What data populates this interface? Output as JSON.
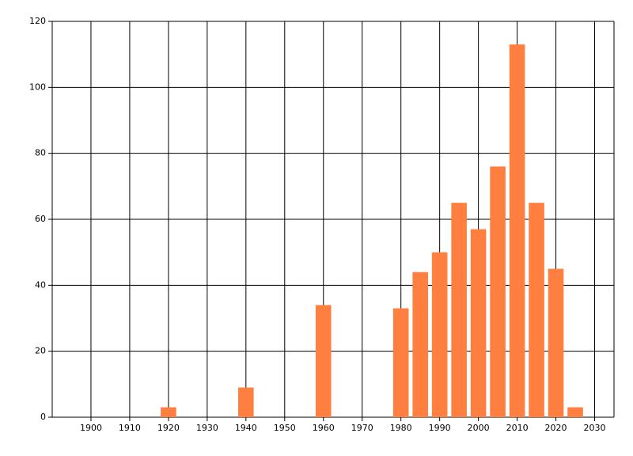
{
  "chart_data": {
    "type": "bar",
    "x": [
      1920,
      1940,
      1960,
      1980,
      1985,
      1990,
      1995,
      2000,
      2005,
      2010,
      2015,
      2020,
      2025
    ],
    "values": [
      3,
      9,
      34,
      33,
      44,
      50,
      65,
      57,
      76,
      113,
      65,
      45,
      3
    ],
    "color": "#ff7f41",
    "xlim": [
      1890,
      2035
    ],
    "xticks": [
      1900,
      1910,
      1920,
      1930,
      1940,
      1950,
      1960,
      1970,
      1980,
      1990,
      2000,
      2010,
      2020,
      2030
    ],
    "ylim": [
      0,
      120
    ],
    "yticks": [
      0,
      20,
      40,
      60,
      80,
      100,
      120
    ],
    "grid": true
  }
}
